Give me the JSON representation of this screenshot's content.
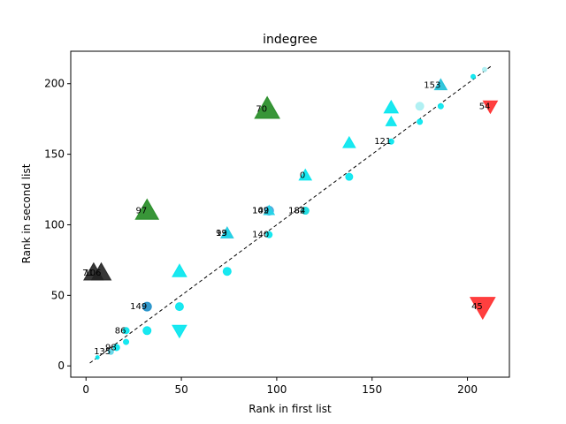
{
  "chart_data": {
    "type": "scatter",
    "title": "indegree",
    "xlabel": "Rank in first list",
    "ylabel": "Rank in second list",
    "xlim": [
      -8,
      222
    ],
    "ylim": [
      -8,
      223
    ],
    "xticks": [
      0,
      50,
      100,
      150,
      200
    ],
    "yticks": [
      0,
      50,
      100,
      150,
      200
    ],
    "grid": false,
    "reference_line": {
      "from": [
        2,
        2
      ],
      "to": [
        213,
        213
      ],
      "style": "dashed",
      "color": "#000000"
    },
    "points": [
      {
        "x": 4,
        "y": 66,
        "shape": "triangle-up",
        "size": 11,
        "color": "#222222",
        "opacity": 0.9,
        "label": "71"
      },
      {
        "x": 8,
        "y": 66,
        "shape": "triangle-up",
        "size": 11,
        "color": "#222222",
        "opacity": 0.9,
        "label": "106"
      },
      {
        "x": 32,
        "y": 110,
        "shape": "triangle-up",
        "size": 13,
        "color": "#228b22",
        "opacity": 0.9,
        "label": "97"
      },
      {
        "x": 95,
        "y": 182,
        "shape": "triangle-up",
        "size": 14,
        "color": "#228b22",
        "opacity": 0.9,
        "label": "70"
      },
      {
        "x": 208,
        "y": 42,
        "shape": "triangle-down",
        "size": 14,
        "color": "#ff2a2a",
        "opacity": 0.9,
        "label": "45"
      },
      {
        "x": 212,
        "y": 184,
        "shape": "triangle-down",
        "size": 8,
        "color": "#ff2a2a",
        "opacity": 0.9,
        "label": "54"
      },
      {
        "x": 32,
        "y": 42,
        "shape": "circle",
        "size": 5,
        "color": "#1e8fc8",
        "opacity": 0.9,
        "label": "149"
      },
      {
        "x": 74,
        "y": 94,
        "shape": "triangle-up",
        "size": 7,
        "color": "#1ec0d8",
        "opacity": 0.9,
        "label": "99"
      },
      {
        "x": 74,
        "y": 94,
        "shape": "triangle-up",
        "size": 6,
        "color": "#22d4e8",
        "opacity": 0.9,
        "label": "13"
      },
      {
        "x": 96,
        "y": 110,
        "shape": "circle",
        "size": 5,
        "color": "#3aa0d8",
        "opacity": 0.8,
        "label": "109"
      },
      {
        "x": 96,
        "y": 110,
        "shape": "triangle-up",
        "size": 6,
        "color": "#22d4e8",
        "opacity": 0.9,
        "label": "142"
      },
      {
        "x": 115,
        "y": 110,
        "shape": "circle",
        "size": 4,
        "color": "#2cc9b0",
        "opacity": 0.9,
        "label": "182"
      },
      {
        "x": 115,
        "y": 110,
        "shape": "circle",
        "size": 4,
        "color": "#22e0e8",
        "opacity": 0.9,
        "label": "184"
      },
      {
        "x": 96,
        "y": 93,
        "shape": "circle",
        "size": 3.5,
        "color": "#00e5ee",
        "opacity": 0.9,
        "label": "140"
      },
      {
        "x": 115,
        "y": 135,
        "shape": "triangle-up",
        "size": 7,
        "color": "#00e5ee",
        "opacity": 0.9,
        "label": "0"
      },
      {
        "x": 160,
        "y": 159,
        "shape": "circle",
        "size": 3,
        "color": "#00e5ee",
        "opacity": 0.9,
        "label": "121"
      },
      {
        "x": 186,
        "y": 199,
        "shape": "triangle-up",
        "size": 7,
        "color": "#1ec0d8",
        "opacity": 0.9,
        "label": "153"
      },
      {
        "x": 21,
        "y": 25,
        "shape": "circle",
        "size": 3.5,
        "color": "#00e5ee",
        "opacity": 0.9,
        "label": "86"
      },
      {
        "x": 16,
        "y": 13,
        "shape": "circle",
        "size": 3.5,
        "color": "#00e5ee",
        "opacity": 0.9,
        "label": "98"
      },
      {
        "x": 13,
        "y": 10,
        "shape": "circle",
        "size": 3,
        "color": "#5cd6e8",
        "opacity": 0.9,
        "label": "135"
      },
      {
        "x": 49,
        "y": 67,
        "shape": "triangle-up",
        "size": 8,
        "color": "#00e5ee",
        "opacity": 0.9,
        "label": ""
      },
      {
        "x": 49,
        "y": 25,
        "shape": "triangle-down",
        "size": 8,
        "color": "#00e5ee",
        "opacity": 0.9,
        "label": ""
      },
      {
        "x": 49,
        "y": 42,
        "shape": "circle",
        "size": 4.5,
        "color": "#00e5ee",
        "opacity": 0.9,
        "label": ""
      },
      {
        "x": 32,
        "y": 25,
        "shape": "circle",
        "size": 4.5,
        "color": "#00e5ee",
        "opacity": 0.9,
        "label": ""
      },
      {
        "x": 74,
        "y": 67,
        "shape": "circle",
        "size": 4.5,
        "color": "#00e5ee",
        "opacity": 0.9,
        "label": ""
      },
      {
        "x": 138,
        "y": 158,
        "shape": "triangle-up",
        "size": 7,
        "color": "#00e5ee",
        "opacity": 0.9,
        "label": ""
      },
      {
        "x": 138,
        "y": 134,
        "shape": "circle",
        "size": 4,
        "color": "#00e5ee",
        "opacity": 0.9,
        "label": ""
      },
      {
        "x": 160,
        "y": 183,
        "shape": "triangle-up",
        "size": 8,
        "color": "#00e5ee",
        "opacity": 0.9,
        "label": ""
      },
      {
        "x": 160,
        "y": 173,
        "shape": "triangle-up",
        "size": 6,
        "color": "#00e5ee",
        "opacity": 0.9,
        "label": ""
      },
      {
        "x": 175,
        "y": 184,
        "shape": "circle",
        "size": 4.5,
        "color": "#a8eef2",
        "opacity": 0.9,
        "label": ""
      },
      {
        "x": 175,
        "y": 173,
        "shape": "circle",
        "size": 3,
        "color": "#00e5ee",
        "opacity": 0.9,
        "label": ""
      },
      {
        "x": 186,
        "y": 184,
        "shape": "circle",
        "size": 3,
        "color": "#00e5ee",
        "opacity": 0.9,
        "label": ""
      },
      {
        "x": 203,
        "y": 205,
        "shape": "circle",
        "size": 2.5,
        "color": "#00e5ee",
        "opacity": 0.9,
        "label": ""
      },
      {
        "x": 209,
        "y": 210,
        "shape": "circle",
        "size": 2.5,
        "color": "#a8eef2",
        "opacity": 0.9,
        "label": ""
      },
      {
        "x": 21,
        "y": 17,
        "shape": "circle",
        "size": 3,
        "color": "#00e5ee",
        "opacity": 0.9,
        "label": ""
      },
      {
        "x": 6,
        "y": 6,
        "shape": "circle",
        "size": 2,
        "color": "#00e5ee",
        "opacity": 0.9,
        "label": ""
      }
    ]
  }
}
